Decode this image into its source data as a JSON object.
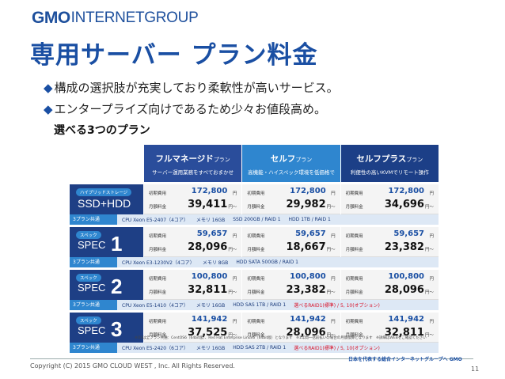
{
  "logo": {
    "gmo": "GMO",
    "rest": "INTERNETGROUP"
  },
  "title": "専用サーバー プラン料金",
  "bullets": [
    {
      "mark": "◆",
      "text": "構成の選択肢が充実しており柔軟性が高いサービス。"
    },
    {
      "mark": "◆",
      "text": "エンタープライズ向けであるため少々お値段高め。"
    }
  ],
  "subtitle": "選べる3つのプラン",
  "plans": [
    {
      "name": "フルマネージド",
      "suffix": "プラン",
      "desc": "サーバー運用業務をすべておまかせ"
    },
    {
      "name": "セルフ",
      "suffix": "プラン",
      "desc": "高機能・ハイスペック環境を低価格で"
    },
    {
      "name": "セルフプラス",
      "suffix": "プラン",
      "desc": "利便性の高いKVMでリモート操作"
    }
  ],
  "labels": {
    "initial": "初期費用",
    "monthly": "月額料金",
    "yen": "円",
    "yen_from": "円〜"
  },
  "specs": [
    {
      "tag": "ハイブリッドストレージ",
      "big": "SSD+HDD",
      "num": "",
      "prices": [
        {
          "initial": "172,800",
          "monthly": "39,411"
        },
        {
          "initial": "172,800",
          "monthly": "29,982"
        },
        {
          "initial": "172,800",
          "monthly": "34,696"
        }
      ],
      "common_label": "3プラン共通",
      "common": [
        {
          "text": "CPU Xeon E5-2407（4コア）",
          "red": false
        },
        {
          "text": "メモリ 16GB",
          "red": false
        },
        {
          "text": "SSD 200GB / RAID 1",
          "red": false
        },
        {
          "text": "HDD 1TB / RAID 1",
          "red": false
        }
      ]
    },
    {
      "tag": "スペック",
      "big": "SPEC",
      "num": "1",
      "prices": [
        {
          "initial": "59,657",
          "monthly": "28,096"
        },
        {
          "initial": "59,657",
          "monthly": "18,667"
        },
        {
          "initial": "59,657",
          "monthly": "23,382"
        }
      ],
      "common_label": "3プラン共通",
      "common": [
        {
          "text": "CPU Xeon E3-1230V2（4コア）",
          "red": false
        },
        {
          "text": "メモリ 8GB",
          "red": false
        },
        {
          "text": "HDD SATA 500GB / RAID 1",
          "red": false
        }
      ]
    },
    {
      "tag": "スペック",
      "big": "SPEC",
      "num": "2",
      "prices": [
        {
          "initial": "100,800",
          "monthly": "32,811"
        },
        {
          "initial": "100,800",
          "monthly": "23,382"
        },
        {
          "initial": "100,800",
          "monthly": "28,096"
        }
      ],
      "common_label": "3プラン共通",
      "common": [
        {
          "text": "CPU Xeon E5-1410（4コア）",
          "red": false
        },
        {
          "text": "メモリ 16GB",
          "red": false
        },
        {
          "text": "HDD SAS 1TB / RAID 1",
          "red": false
        },
        {
          "text": "選べるRAID1(標準) / 5, 10(オプション)",
          "red": true
        }
      ]
    },
    {
      "tag": "スペック",
      "big": "SPEC",
      "num": "3",
      "prices": [
        {
          "initial": "141,942",
          "monthly": "37,525"
        },
        {
          "initial": "141,942",
          "monthly": "28,096"
        },
        {
          "initial": "141,942",
          "monthly": "32,811"
        }
      ],
      "common_label": "3プラン共通",
      "common": [
        {
          "text": "CPU Xeon E5-2420（6コア）",
          "red": false
        },
        {
          "text": "メモリ 16GB",
          "red": false
        },
        {
          "text": "HDD SAS 2TB / RAID 1",
          "red": false
        },
        {
          "text": "選べるRAID1(標準) / 5, 10(オプション)",
          "red": true
        }
      ]
    }
  ],
  "note": "※OSは全プラン共通：CentOS6（64bit版）、Red Hat Enterprise Linux6（64bit版）となります　※1年間一括前払いの場合の月額換算となります　※詳細はWEBをご確認ください",
  "footer": {
    "copyright": "Copyright (C) 2015 GMO CLOUD WEST , Inc. All Rights Reserved.",
    "tagline": "日本を代表する総合インターネットグループへ GMO",
    "page": "11"
  }
}
